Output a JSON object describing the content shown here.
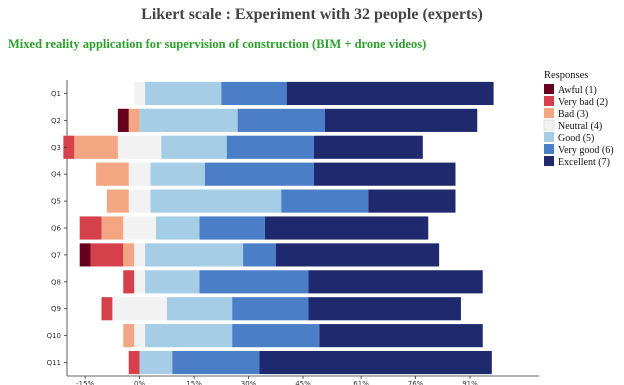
{
  "title": "Likert scale : Experiment with 32 people (experts)",
  "subtitle": "Mixed reality application for supervision of construction (BIM + drone videos)",
  "chart_data": {
    "type": "bar",
    "orientation": "horizontal-diverging",
    "categories": [
      "Q1",
      "Q2",
      "Q3",
      "Q4",
      "Q5",
      "Q6",
      "Q7",
      "Q8",
      "Q9",
      "Q10",
      "Q11"
    ],
    "xlim": [
      -20,
      110
    ],
    "xticks": [
      -15,
      0,
      15,
      30,
      45,
      61,
      76,
      91
    ],
    "xtick_labels": [
      "-15%",
      "0%",
      "15%",
      "30%",
      "45%",
      "61%",
      "76%",
      "91%"
    ],
    "legend_title": "Responses",
    "legend_position": "right",
    "series": [
      {
        "name": "Awful (1)",
        "color": "#67001f",
        "values": [
          0,
          3,
          0,
          0,
          0,
          0,
          3,
          0,
          0,
          0,
          0
        ]
      },
      {
        "name": "Very bad (2)",
        "color": "#d6404a",
        "values": [
          0,
          0,
          3,
          0,
          0,
          6,
          9,
          3,
          3,
          0,
          3
        ]
      },
      {
        "name": "Bad (3)",
        "color": "#f4a582",
        "values": [
          0,
          3,
          12,
          9,
          6,
          6,
          3,
          0,
          0,
          3,
          0
        ]
      },
      {
        "name": "Neutral (4)",
        "color": "#f2f2f2",
        "values": [
          3,
          0,
          12,
          6,
          6,
          9,
          3,
          3,
          15,
          3,
          0
        ]
      },
      {
        "name": "Good (5)",
        "color": "#a6cde6",
        "values": [
          21,
          27,
          18,
          15,
          36,
          12,
          27,
          15,
          18,
          24,
          9
        ]
      },
      {
        "name": "Very good (6)",
        "color": "#4a7fc8",
        "values": [
          18,
          24,
          24,
          30,
          24,
          18,
          9,
          30,
          21,
          24,
          24
        ]
      },
      {
        "name": "Excellent (7)",
        "color": "#1f2a6e",
        "values": [
          57,
          42,
          30,
          39,
          24,
          45,
          45,
          48,
          42,
          45,
          64
        ]
      }
    ]
  }
}
